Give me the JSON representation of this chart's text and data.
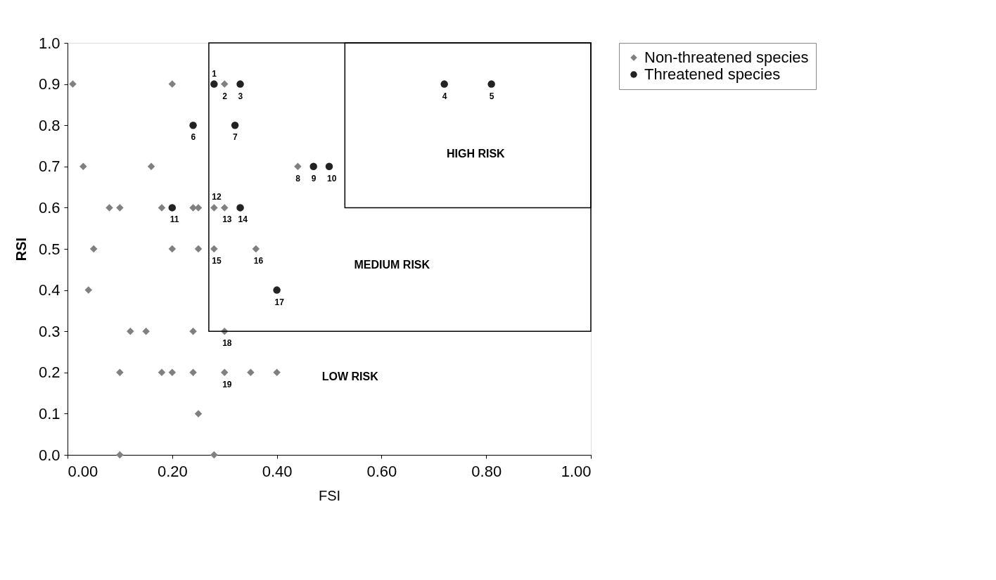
{
  "chart_data": {
    "type": "scatter",
    "xlabel": "FSI",
    "ylabel": "RSI",
    "xlim": [
      0,
      1
    ],
    "ylim": [
      0,
      1
    ],
    "xticks": [
      {
        "value": 0,
        "label": "0.00"
      },
      {
        "value": 0.2,
        "label": "0.20"
      },
      {
        "value": 0.4,
        "label": "0.40"
      },
      {
        "value": 0.6,
        "label": "0.60"
      },
      {
        "value": 0.8,
        "label": "0.80"
      },
      {
        "value": 1,
        "label": "1.00"
      }
    ],
    "yticks": [
      {
        "value": 0,
        "label": "0.0"
      },
      {
        "value": 0.1,
        "label": "0.1"
      },
      {
        "value": 0.2,
        "label": "0.2"
      },
      {
        "value": 0.3,
        "label": "0.3"
      },
      {
        "value": 0.4,
        "label": "0.4"
      },
      {
        "value": 0.5,
        "label": "0.5"
      },
      {
        "value": 0.6,
        "label": "0.6"
      },
      {
        "value": 0.7,
        "label": "0.7"
      },
      {
        "value": 0.8,
        "label": "0.8"
      },
      {
        "value": 0.9,
        "label": "0.9"
      },
      {
        "value": 1,
        "label": "1.0"
      }
    ],
    "grid": false,
    "legend": "right",
    "series": [
      {
        "name": "Non-threatened species",
        "color": "#808080",
        "marker": "diamond",
        "x": [
          0.01,
          0.2,
          0.3,
          0.03,
          0.16,
          0.44,
          0.08,
          0.1,
          0.18,
          0.24,
          0.25,
          0.28,
          0.3,
          0.05,
          0.2,
          0.25,
          0.28,
          0.36,
          0.04,
          0.12,
          0.15,
          0.24,
          0.3,
          0.1,
          0.18,
          0.2,
          0.24,
          0.3,
          0.35,
          0.4,
          0.25,
          0.1,
          0.28
        ],
        "values": [
          0.9,
          0.9,
          0.9,
          0.7,
          0.7,
          0.7,
          0.6,
          0.6,
          0.6,
          0.6,
          0.6,
          0.6,
          0.6,
          0.5,
          0.5,
          0.5,
          0.5,
          0.5,
          0.4,
          0.3,
          0.3,
          0.3,
          0.3,
          0.2,
          0.2,
          0.2,
          0.2,
          0.2,
          0.2,
          0.2,
          0.1,
          0.0,
          0.0
        ]
      },
      {
        "name": "Threatened species",
        "color": "#222222",
        "marker": "circle",
        "x": [
          0.28,
          0.33,
          0.72,
          0.81,
          0.24,
          0.32,
          0.47,
          0.5,
          0.2,
          0.33,
          0.4
        ],
        "values": [
          0.9,
          0.9,
          0.9,
          0.9,
          0.8,
          0.8,
          0.7,
          0.7,
          0.6,
          0.6,
          0.4
        ]
      }
    ],
    "annotations": [
      {
        "text": "1",
        "x": 0.28,
        "y": 0.9
      },
      {
        "text": "2",
        "x": 0.3,
        "y": 0.9
      },
      {
        "text": "3",
        "x": 0.33,
        "y": 0.9
      },
      {
        "text": "4",
        "x": 0.72,
        "y": 0.9
      },
      {
        "text": "5",
        "x": 0.81,
        "y": 0.9
      },
      {
        "text": "6",
        "x": 0.24,
        "y": 0.8
      },
      {
        "text": "7",
        "x": 0.32,
        "y": 0.8
      },
      {
        "text": "8",
        "x": 0.44,
        "y": 0.7
      },
      {
        "text": "9",
        "x": 0.47,
        "y": 0.7
      },
      {
        "text": "10",
        "x": 0.5,
        "y": 0.7
      },
      {
        "text": "11",
        "x": 0.2,
        "y": 0.6
      },
      {
        "text": "12",
        "x": 0.28,
        "y": 0.6
      },
      {
        "text": "13",
        "x": 0.3,
        "y": 0.6
      },
      {
        "text": "14",
        "x": 0.33,
        "y": 0.6
      },
      {
        "text": "15",
        "x": 0.28,
        "y": 0.5
      },
      {
        "text": "16",
        "x": 0.36,
        "y": 0.5
      },
      {
        "text": "17",
        "x": 0.4,
        "y": 0.4
      },
      {
        "text": "18",
        "x": 0.3,
        "y": 0.3
      },
      {
        "text": "19",
        "x": 0.3,
        "y": 0.2
      },
      "HIGH RISK",
      "MEDIUM RISK",
      "LOW RISK"
    ]
  }
}
